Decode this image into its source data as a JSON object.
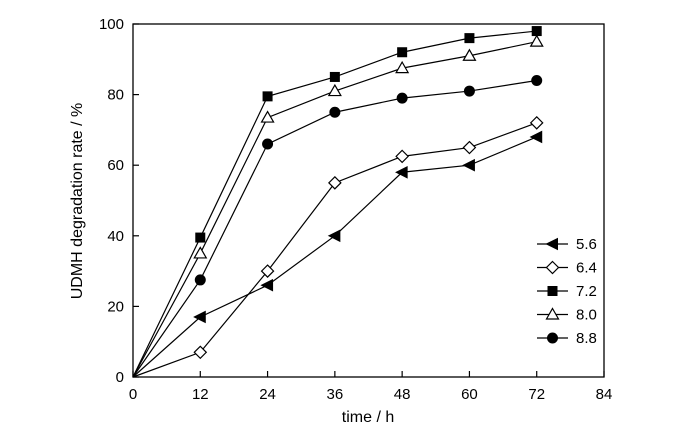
{
  "chart_data": {
    "type": "line",
    "title": "",
    "xlabel": "time / h",
    "ylabel": "UDMH degradation rate / %",
    "xlim": [
      0,
      84
    ],
    "ylim": [
      0,
      100
    ],
    "xticks": [
      0,
      12,
      24,
      36,
      48,
      60,
      72,
      84
    ],
    "yticks": [
      0,
      20,
      40,
      60,
      80,
      100
    ],
    "grid": false,
    "legend_position": "right",
    "x": [
      0,
      12,
      24,
      36,
      48,
      60,
      72
    ],
    "series": [
      {
        "name": "5.6",
        "marker": "triangle-left-filled",
        "values": [
          0,
          17,
          26,
          40,
          58,
          60,
          68
        ]
      },
      {
        "name": "6.4",
        "marker": "diamond-open",
        "values": [
          0,
          7,
          30,
          55,
          62.5,
          65,
          72
        ]
      },
      {
        "name": "7.2",
        "marker": "square-filled",
        "values": [
          0,
          39.5,
          79.5,
          85,
          92,
          96,
          98
        ]
      },
      {
        "name": "8.0",
        "marker": "triangle-up-open",
        "values": [
          0,
          35,
          73.5,
          81,
          87.5,
          91,
          95
        ]
      },
      {
        "name": "8.8",
        "marker": "circle-filled",
        "values": [
          0,
          27.5,
          66,
          75,
          79,
          81,
          84
        ]
      }
    ],
    "colors": {
      "line": "#000000",
      "background": "#ffffff"
    }
  }
}
